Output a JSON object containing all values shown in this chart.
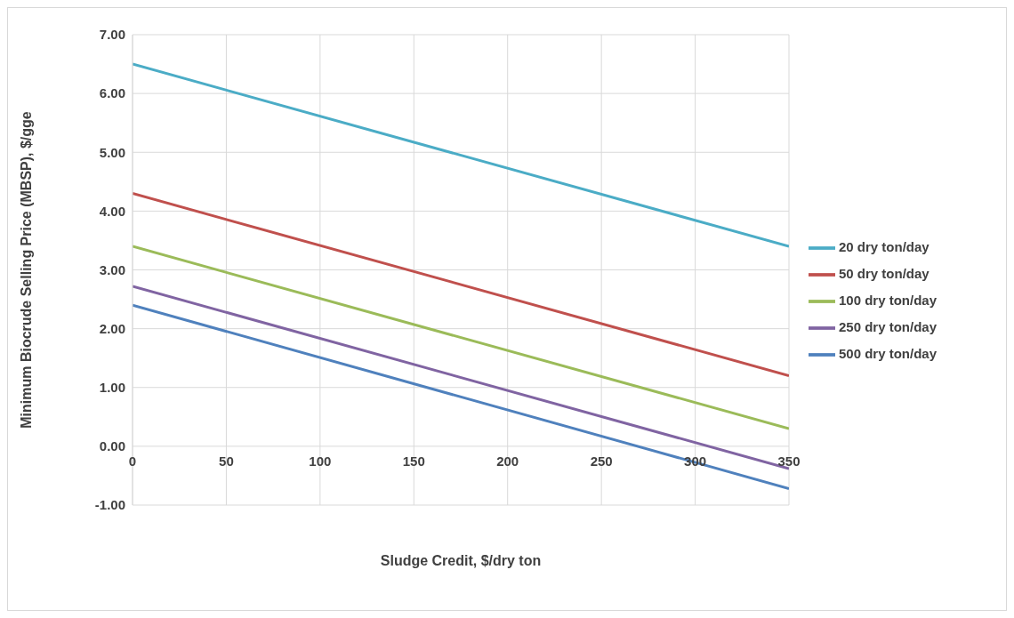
{
  "chart_data": {
    "type": "line",
    "xlabel": "Sludge Credit, $/dry ton",
    "ylabel": "Minimum Biocrude Selling Price (MBSP), $/gge",
    "x": [
      0,
      350
    ],
    "series": [
      {
        "name": "20 dry ton/day",
        "color": "#4bacc6",
        "values": [
          6.5,
          3.4
        ]
      },
      {
        "name": "50 dry ton/day",
        "color": "#c0504d",
        "values": [
          4.3,
          1.2
        ]
      },
      {
        "name": "100 dry ton/day",
        "color": "#9bbb59",
        "values": [
          3.4,
          0.3
        ]
      },
      {
        "name": "250 dry ton/day",
        "color": "#8064a2",
        "values": [
          2.72,
          -0.38
        ]
      },
      {
        "name": "500 dry ton/day",
        "color": "#4f81bd",
        "values": [
          2.4,
          -0.72
        ]
      }
    ],
    "xlim": [
      0,
      350
    ],
    "xticks": [
      0,
      50,
      100,
      150,
      200,
      250,
      300,
      350
    ],
    "ylim": [
      -1,
      7
    ],
    "yticks": [
      {
        "value": -1,
        "label": "-1.00"
      },
      {
        "value": 0,
        "label": "0.00"
      },
      {
        "value": 1,
        "label": "1.00"
      },
      {
        "value": 2,
        "label": "2.00"
      },
      {
        "value": 3,
        "label": "3.00"
      },
      {
        "value": 4,
        "label": "4.00"
      },
      {
        "value": 5,
        "label": "5.00"
      },
      {
        "value": 6,
        "label": "6.00"
      },
      {
        "value": 7,
        "label": "7.00"
      }
    ],
    "grid": true,
    "legend": "right",
    "marker": "none",
    "line_style": "solid"
  }
}
